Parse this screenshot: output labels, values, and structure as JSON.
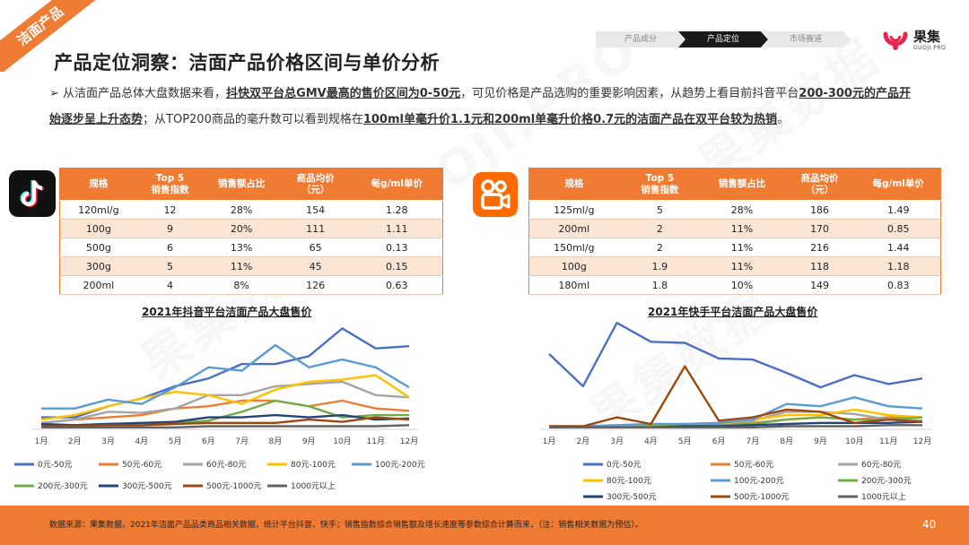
{
  "corner_tag": "洁面产品",
  "title": "产品定位洞察：洁面产品价格区间与单价分析",
  "breadcrumb": [
    "产品成分",
    "产品定位",
    "市场赛道"
  ],
  "logo": {
    "name": "果集",
    "sub": "GUOJI.PRO"
  },
  "watermark": [
    "果集数据",
    "GUOJI.PRO"
  ],
  "paragraph": {
    "bullet": "➢",
    "p1": "从洁面产品总体大盘数据来看，",
    "u1": "抖快双平台总GMV最高的售价区间为0-50元",
    "p2": "，可见价格是产品选购的重要影响因素，从趋势上看目前抖音平台",
    "u2": "200-300元的产品开始逐步呈上升态势",
    "p3": "；从TOP200商品的毫升数可以看到规格在",
    "u3": "100ml单毫升价1.1元和200ml单毫升价格0.7元的洁面产品在双平台较为热销",
    "p4": "。"
  },
  "table_headers": [
    "规格",
    "Top 5\n销售指数",
    "销售额占比",
    "商品均价\n（元）",
    "每g/ml单价"
  ],
  "douyin_table": [
    [
      "120ml/g",
      "12",
      "28%",
      "154",
      "1.28"
    ],
    [
      "100g",
      "9",
      "20%",
      "111",
      "1.11"
    ],
    [
      "500g",
      "6",
      "13%",
      "65",
      "0.13"
    ],
    [
      "300g",
      "5",
      "11%",
      "45",
      "0.15"
    ],
    [
      "200ml",
      "4",
      "8%",
      "126",
      "0.63"
    ]
  ],
  "kuaishou_table": [
    [
      "125ml/g",
      "5",
      "28%",
      "186",
      "1.49"
    ],
    [
      "200ml",
      "2",
      "11%",
      "170",
      "0.85"
    ],
    [
      "150ml/g",
      "2",
      "11%",
      "216",
      "1.44"
    ],
    [
      "100g",
      "1.9",
      "11%",
      "118",
      "1.18"
    ],
    [
      "180ml",
      "1.8",
      "10%",
      "149",
      "0.83"
    ]
  ],
  "chart_data": [
    {
      "type": "line",
      "title": "2021年抖音平台洁面产品大盘售价",
      "categories": [
        "1月",
        "2月",
        "3月",
        "4月",
        "5月",
        "6月",
        "7月",
        "8月",
        "9月",
        "10月",
        "11月",
        "12月"
      ],
      "ylim": [
        0,
        100
      ],
      "grid": false,
      "legend_position": "bottom",
      "series": [
        {
          "name": "0元-50元",
          "color": "#4a6fc4",
          "values": [
            10,
            10,
            20,
            27,
            38,
            45,
            58,
            58,
            65,
            90,
            72,
            74
          ]
        },
        {
          "name": "50元-60元",
          "color": "#ed7d31",
          "values": [
            5,
            8,
            10,
            12,
            18,
            20,
            25,
            25,
            20,
            25,
            18,
            16
          ]
        },
        {
          "name": "60元-80元",
          "color": "#a5a5a5",
          "values": [
            5,
            8,
            15,
            14,
            18,
            30,
            30,
            38,
            40,
            42,
            30,
            28
          ]
        },
        {
          "name": "80元-100元",
          "color": "#ffc000",
          "values": [
            8,
            12,
            20,
            27,
            33,
            30,
            22,
            35,
            42,
            44,
            48,
            28
          ]
        },
        {
          "name": "100元-200元",
          "color": "#5b9bd5",
          "values": [
            18,
            18,
            26,
            22,
            37,
            55,
            52,
            75,
            55,
            62,
            55,
            37
          ]
        },
        {
          "name": "200元-300元",
          "color": "#70ad47",
          "values": [
            2,
            3,
            4,
            5,
            5,
            7,
            15,
            25,
            20,
            10,
            12,
            12
          ]
        },
        {
          "name": "300元-500元",
          "color": "#264478",
          "values": [
            4,
            3,
            4,
            5,
            6,
            10,
            10,
            12,
            10,
            12,
            8,
            9
          ]
        },
        {
          "name": "500元-1000元",
          "color": "#9e480e",
          "values": [
            2,
            2,
            3,
            3,
            4,
            5,
            5,
            5,
            8,
            6,
            10,
            8
          ]
        },
        {
          "name": "1000元以上",
          "color": "#636363",
          "values": [
            1,
            1,
            1,
            1,
            1,
            2,
            2,
            2,
            2,
            2,
            2,
            3
          ]
        }
      ]
    },
    {
      "type": "line",
      "title": "2021年快手平台洁面产品大盘售价",
      "categories": [
        "1月",
        "2月",
        "3月",
        "4月",
        "5月",
        "6月",
        "7月",
        "8月",
        "9月",
        "10月",
        "11月",
        "12月"
      ],
      "ylim": [
        0,
        100
      ],
      "grid": false,
      "legend_position": "bottom",
      "series": [
        {
          "name": "0元-50元",
          "color": "#4a6fc4",
          "values": [
            67,
            38,
            95,
            78,
            77,
            63,
            62,
            50,
            37,
            48,
            40,
            45
          ]
        },
        {
          "name": "50元-60元",
          "color": "#ed7d31",
          "values": [
            1,
            1,
            3,
            3,
            3,
            4,
            5,
            8,
            10,
            8,
            10,
            10
          ]
        },
        {
          "name": "60元-80元",
          "color": "#a5a5a5",
          "values": [
            1,
            1,
            2,
            3,
            3,
            5,
            7,
            15,
            15,
            13,
            8,
            7
          ]
        },
        {
          "name": "80元-100元",
          "color": "#ffc000",
          "values": [
            1,
            1,
            2,
            3,
            4,
            4,
            8,
            12,
            12,
            17,
            12,
            10
          ]
        },
        {
          "name": "100元-200元",
          "color": "#5b9bd5",
          "values": [
            2,
            2,
            3,
            4,
            4,
            5,
            8,
            22,
            20,
            28,
            20,
            18
          ]
        },
        {
          "name": "200元-300元",
          "color": "#70ad47",
          "values": [
            1,
            1,
            1,
            2,
            2,
            3,
            4,
            8,
            10,
            8,
            8,
            10
          ]
        },
        {
          "name": "300元-500元",
          "color": "#264478",
          "values": [
            1,
            1,
            1,
            1,
            2,
            2,
            3,
            4,
            5,
            5,
            5,
            6
          ]
        },
        {
          "name": "500元-1000元",
          "color": "#9e480e",
          "values": [
            2,
            2,
            10,
            4,
            56,
            7,
            10,
            17,
            15,
            5,
            8,
            6
          ]
        },
        {
          "name": "1000元以上",
          "color": "#636363",
          "values": [
            1,
            1,
            1,
            1,
            1,
            1,
            1,
            2,
            2,
            2,
            3,
            3
          ]
        }
      ]
    }
  ],
  "footer": {
    "source": "数据来源：果集数据，2021年洁面产品品类商品相关数据，统计平台抖音、快手；销售指数综合销售额及增长速度等参数综合计算而来，（注：销售相关数据为预估）。",
    "page": "40"
  }
}
